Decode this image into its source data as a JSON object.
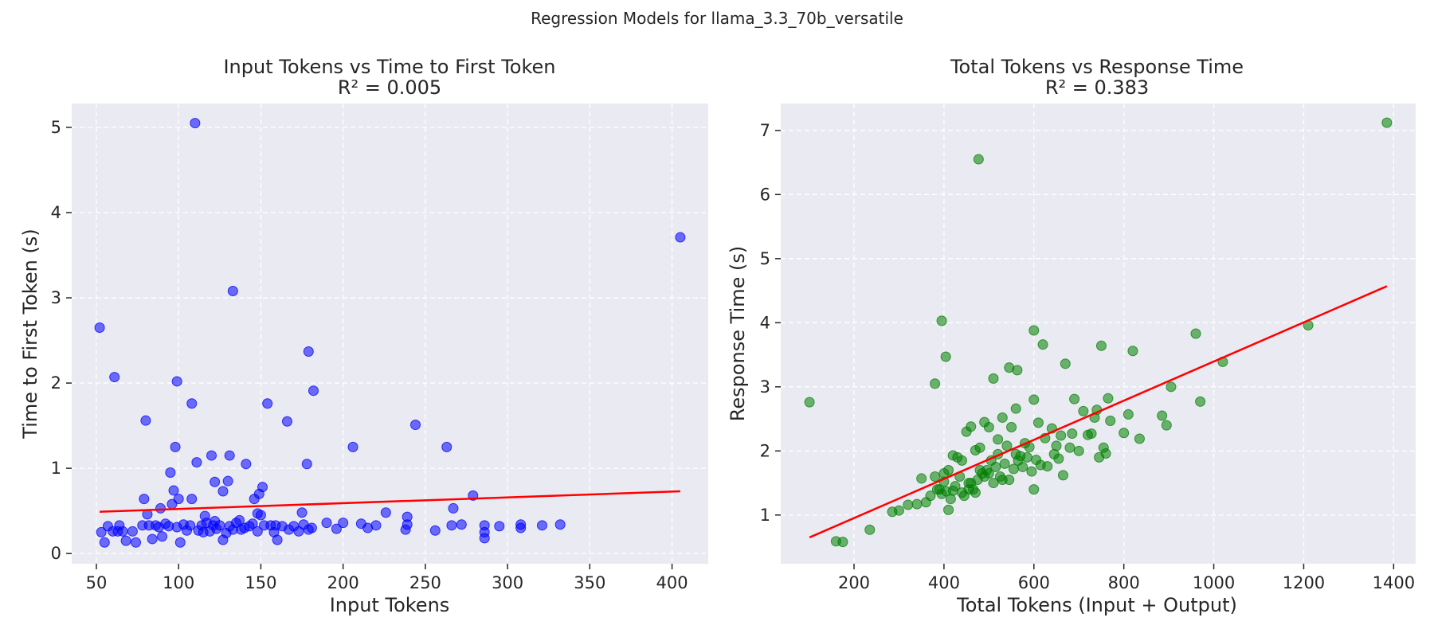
{
  "figure": {
    "suptitle": "Regression Models for llama_3.3_70b_versatile"
  },
  "chart_data": [
    {
      "type": "scatter",
      "title": "Input Tokens vs Time to First Token",
      "subtitle": "R² = 0.005",
      "xlabel": "Input Tokens",
      "ylabel": "Time to First Token (s)",
      "xlim": [
        35,
        422
      ],
      "ylim": [
        -0.12,
        5.28
      ],
      "xticks": [
        50,
        100,
        150,
        200,
        250,
        300,
        350,
        400
      ],
      "yticks": [
        0,
        1,
        2,
        3,
        4,
        5
      ],
      "grid": true,
      "point_color": "#0000ff",
      "line_color": "#ff0000",
      "regression_line": {
        "x": [
          52,
          405
        ],
        "y": [
          0.49,
          0.73
        ]
      },
      "points": [
        [
          110,
          5.05
        ],
        [
          405,
          3.71
        ],
        [
          133,
          3.08
        ],
        [
          52,
          2.65
        ],
        [
          61,
          2.07
        ],
        [
          99,
          2.02
        ],
        [
          179,
          2.37
        ],
        [
          182,
          1.91
        ],
        [
          108,
          1.76
        ],
        [
          154,
          1.76
        ],
        [
          166,
          1.55
        ],
        [
          80,
          1.56
        ],
        [
          244,
          1.51
        ],
        [
          263,
          1.25
        ],
        [
          206,
          1.25
        ],
        [
          98,
          1.25
        ],
        [
          120,
          1.15
        ],
        [
          131,
          1.15
        ],
        [
          111,
          1.07
        ],
        [
          141,
          1.05
        ],
        [
          178,
          1.05
        ],
        [
          95,
          0.95
        ],
        [
          122,
          0.84
        ],
        [
          130,
          0.85
        ],
        [
          151,
          0.78
        ],
        [
          127,
          0.73
        ],
        [
          97,
          0.74
        ],
        [
          146,
          0.64
        ],
        [
          149,
          0.7
        ],
        [
          79,
          0.64
        ],
        [
          100,
          0.64
        ],
        [
          108,
          0.64
        ],
        [
          279,
          0.68
        ],
        [
          267,
          0.53
        ],
        [
          89,
          0.53
        ],
        [
          96,
          0.58
        ],
        [
          81,
          0.46
        ],
        [
          148,
          0.47
        ],
        [
          175,
          0.48
        ],
        [
          226,
          0.48
        ],
        [
          150,
          0.45
        ],
        [
          116,
          0.44
        ],
        [
          122,
          0.38
        ],
        [
          137,
          0.39
        ],
        [
          159,
          0.33
        ],
        [
          190,
          0.36
        ],
        [
          200,
          0.36
        ],
        [
          211,
          0.35
        ],
        [
          239,
          0.43
        ],
        [
          239,
          0.34
        ],
        [
          238,
          0.28
        ],
        [
          256,
          0.27
        ],
        [
          266,
          0.33
        ],
        [
          272,
          0.34
        ],
        [
          286,
          0.33
        ],
        [
          286,
          0.25
        ],
        [
          286,
          0.18
        ],
        [
          295,
          0.32
        ],
        [
          308,
          0.34
        ],
        [
          308,
          0.3
        ],
        [
          321,
          0.33
        ],
        [
          332,
          0.34
        ],
        [
          53,
          0.25
        ],
        [
          55,
          0.13
        ],
        [
          57,
          0.32
        ],
        [
          60,
          0.26
        ],
        [
          63,
          0.26
        ],
        [
          64,
          0.33
        ],
        [
          66,
          0.26
        ],
        [
          68,
          0.15
        ],
        [
          72,
          0.26
        ],
        [
          74,
          0.13
        ],
        [
          78,
          0.33
        ],
        [
          82,
          0.33
        ],
        [
          84,
          0.17
        ],
        [
          86,
          0.33
        ],
        [
          88,
          0.31
        ],
        [
          90,
          0.2
        ],
        [
          92,
          0.35
        ],
        [
          94,
          0.32
        ],
        [
          99,
          0.31
        ],
        [
          101,
          0.13
        ],
        [
          103,
          0.34
        ],
        [
          105,
          0.27
        ],
        [
          107,
          0.33
        ],
        [
          112,
          0.27
        ],
        [
          114,
          0.33
        ],
        [
          115,
          0.25
        ],
        [
          117,
          0.36
        ],
        [
          119,
          0.26
        ],
        [
          121,
          0.33
        ],
        [
          123,
          0.29
        ],
        [
          125,
          0.33
        ],
        [
          127,
          0.16
        ],
        [
          129,
          0.24
        ],
        [
          131,
          0.32
        ],
        [
          133,
          0.28
        ],
        [
          135,
          0.36
        ],
        [
          138,
          0.28
        ],
        [
          140,
          0.3
        ],
        [
          143,
          0.32
        ],
        [
          145,
          0.35
        ],
        [
          148,
          0.26
        ],
        [
          152,
          0.33
        ],
        [
          156,
          0.33
        ],
        [
          158,
          0.25
        ],
        [
          160,
          0.16
        ],
        [
          163,
          0.32
        ],
        [
          167,
          0.28
        ],
        [
          170,
          0.32
        ],
        [
          173,
          0.26
        ],
        [
          176,
          0.34
        ],
        [
          179,
          0.28
        ],
        [
          181,
          0.3
        ],
        [
          196,
          0.29
        ],
        [
          215,
          0.3
        ],
        [
          220,
          0.33
        ]
      ]
    },
    {
      "type": "scatter",
      "title": "Total Tokens vs Response Time",
      "subtitle": "R² = 0.383",
      "xlabel": "Total Tokens (Input + Output)",
      "ylabel": "Response Time (s)",
      "xlim": [
        37,
        1449
      ],
      "ylim": [
        0.24,
        7.42
      ],
      "xticks": [
        200,
        400,
        600,
        800,
        1000,
        1200,
        1400
      ],
      "yticks": [
        1,
        2,
        3,
        4,
        5,
        6,
        7
      ],
      "grid": true,
      "point_color": "#008000",
      "line_color": "#ff0000",
      "regression_line": {
        "x": [
          101,
          1385
        ],
        "y": [
          0.65,
          4.57
        ]
      },
      "points": [
        [
          1385,
          7.12
        ],
        [
          477,
          6.55
        ],
        [
          101,
          2.76
        ],
        [
          395,
          4.03
        ],
        [
          404,
          3.47
        ],
        [
          380,
          3.05
        ],
        [
          600,
          3.88
        ],
        [
          620,
          3.66
        ],
        [
          545,
          3.3
        ],
        [
          563,
          3.26
        ],
        [
          510,
          3.13
        ],
        [
          670,
          3.36
        ],
        [
          750,
          3.64
        ],
        [
          820,
          3.56
        ],
        [
          960,
          3.83
        ],
        [
          1210,
          3.96
        ],
        [
          1020,
          3.39
        ],
        [
          905,
          3.0
        ],
        [
          970,
          2.77
        ],
        [
          885,
          2.55
        ],
        [
          895,
          2.4
        ],
        [
          835,
          2.19
        ],
        [
          810,
          2.57
        ],
        [
          800,
          2.28
        ],
        [
          765,
          2.82
        ],
        [
          740,
          2.64
        ],
        [
          735,
          2.52
        ],
        [
          770,
          2.47
        ],
        [
          728,
          2.27
        ],
        [
          710,
          2.62
        ],
        [
          690,
          2.81
        ],
        [
          685,
          2.27
        ],
        [
          660,
          2.24
        ],
        [
          650,
          2.08
        ],
        [
          640,
          2.35
        ],
        [
          625,
          2.2
        ],
        [
          610,
          2.44
        ],
        [
          600,
          2.8
        ],
        [
          590,
          2.06
        ],
        [
          580,
          2.12
        ],
        [
          570,
          1.92
        ],
        [
          560,
          2.66
        ],
        [
          550,
          2.37
        ],
        [
          540,
          2.08
        ],
        [
          530,
          2.52
        ],
        [
          520,
          2.18
        ],
        [
          500,
          2.37
        ],
        [
          490,
          2.45
        ],
        [
          480,
          2.05
        ],
        [
          470,
          2.01
        ],
        [
          460,
          2.38
        ],
        [
          450,
          2.3
        ],
        [
          440,
          1.85
        ],
        [
          430,
          1.9
        ],
        [
          420,
          1.93
        ],
        [
          410,
          1.7
        ],
        [
          400,
          1.65
        ],
        [
          390,
          1.4
        ],
        [
          380,
          1.6
        ],
        [
          370,
          1.3
        ],
        [
          360,
          1.2
        ],
        [
          350,
          1.57
        ],
        [
          340,
          1.17
        ],
        [
          320,
          1.16
        ],
        [
          300,
          1.07
        ],
        [
          285,
          1.05
        ],
        [
          235,
          0.77
        ],
        [
          175,
          0.58
        ],
        [
          160,
          0.59
        ],
        [
          410,
          1.08
        ],
        [
          395,
          1.33
        ],
        [
          405,
          1.37
        ],
        [
          415,
          1.25
        ],
        [
          425,
          1.45
        ],
        [
          435,
          1.6
        ],
        [
          445,
          1.3
        ],
        [
          455,
          1.5
        ],
        [
          465,
          1.4
        ],
        [
          475,
          1.55
        ],
        [
          485,
          1.65
        ],
        [
          495,
          1.7
        ],
        [
          505,
          1.85
        ],
        [
          515,
          1.75
        ],
        [
          525,
          1.6
        ],
        [
          535,
          1.8
        ],
        [
          545,
          1.55
        ],
        [
          555,
          1.72
        ],
        [
          565,
          1.85
        ],
        [
          575,
          1.75
        ],
        [
          585,
          1.9
        ],
        [
          595,
          1.68
        ],
        [
          605,
          1.86
        ],
        [
          615,
          1.78
        ],
        [
          630,
          1.76
        ],
        [
          645,
          1.95
        ],
        [
          655,
          1.88
        ],
        [
          665,
          1.62
        ],
        [
          680,
          2.05
        ],
        [
          700,
          2.0
        ],
        [
          720,
          2.25
        ],
        [
          755,
          2.05
        ],
        [
          760,
          1.96
        ],
        [
          745,
          1.9
        ],
        [
          600,
          1.4
        ],
        [
          560,
          1.95
        ],
        [
          520,
          1.95
        ],
        [
          480,
          1.7
        ],
        [
          460,
          1.5
        ],
        [
          440,
          1.35
        ],
        [
          420,
          1.38
        ],
        [
          400,
          1.52
        ],
        [
          385,
          1.4
        ],
        [
          470,
          1.35
        ],
        [
          500,
          1.65
        ],
        [
          530,
          1.55
        ],
        [
          455,
          1.4
        ],
        [
          490,
          1.6
        ],
        [
          510,
          1.5
        ]
      ]
    }
  ]
}
